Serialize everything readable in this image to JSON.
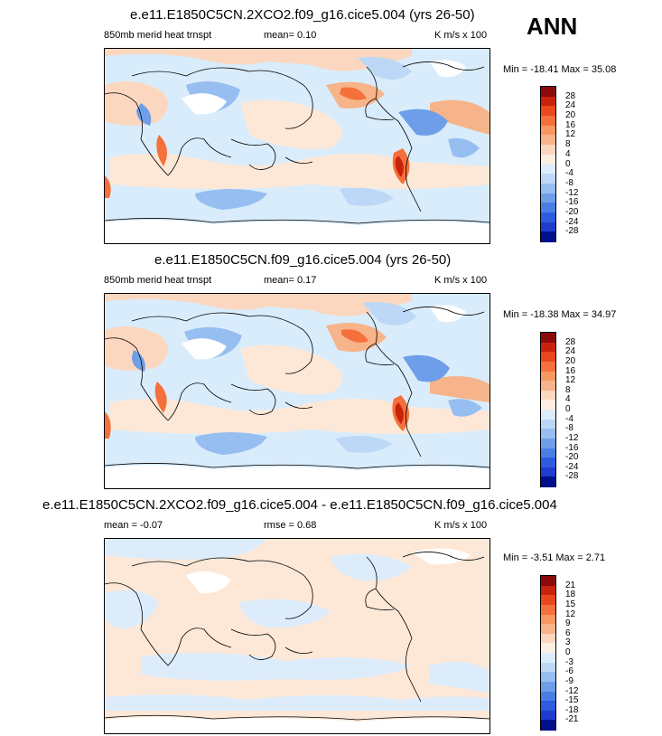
{
  "season": "ANN",
  "colors": {
    "panel1_scale": [
      "#8b0a0a",
      "#c9220c",
      "#e8481c",
      "#f5703a",
      "#f89860",
      "#f7b48a",
      "#fbd7bf",
      "#fdeee3",
      "#dcecfb",
      "#bcd8f6",
      "#96bef1",
      "#6e9ee9",
      "#4b7ee3",
      "#2e5be0",
      "#1f3cd0",
      "#00108a"
    ],
    "land_white": "#ffffff",
    "neutral_blue": "#d9ecfb",
    "neutral_peach": "#fde8d8"
  },
  "panels": [
    {
      "title": "e.e11.E1850C5CN.2XCO2.f09_g16.cice5.004 (yrs 26-50)",
      "left_label": "850mb merid heat trnspt",
      "mean_label": "mean=   0.10",
      "units": "K m/s x 100",
      "minmax": "Min = -18.41 Max =  35.08",
      "colorbar_labels": [
        "28",
        "24",
        "20",
        "16",
        "12",
        "8",
        "4",
        "0",
        "-4",
        "-8",
        "-12",
        "-16",
        "-20",
        "-24",
        "-28"
      ]
    },
    {
      "title": "e.e11.E1850C5CN.f09_g16.cice5.004 (yrs 26-50)",
      "left_label": "850mb merid heat trnspt",
      "mean_label": "mean=   0.17",
      "units": "K m/s x 100",
      "minmax": "Min = -18.38 Max =  34.97",
      "colorbar_labels": [
        "28",
        "24",
        "20",
        "16",
        "12",
        "8",
        "4",
        "0",
        "-4",
        "-8",
        "-12",
        "-16",
        "-20",
        "-24",
        "-28"
      ]
    },
    {
      "title": "e.e11.E1850C5CN.2XCO2.f09_g16.cice5.004 - e.e11.E1850C5CN.f09_g16.cice5.004",
      "left_label": "mean =  -0.07",
      "mean_label": "rmse =   0.68",
      "units": "K m/s x 100",
      "minmax": "Min =  -3.51 Max =   2.71",
      "colorbar_labels": [
        "21",
        "18",
        "15",
        "12",
        "9",
        "6",
        "3",
        "0",
        "-3",
        "-6",
        "-9",
        "-12",
        "-15",
        "-18",
        "-21"
      ]
    }
  ]
}
